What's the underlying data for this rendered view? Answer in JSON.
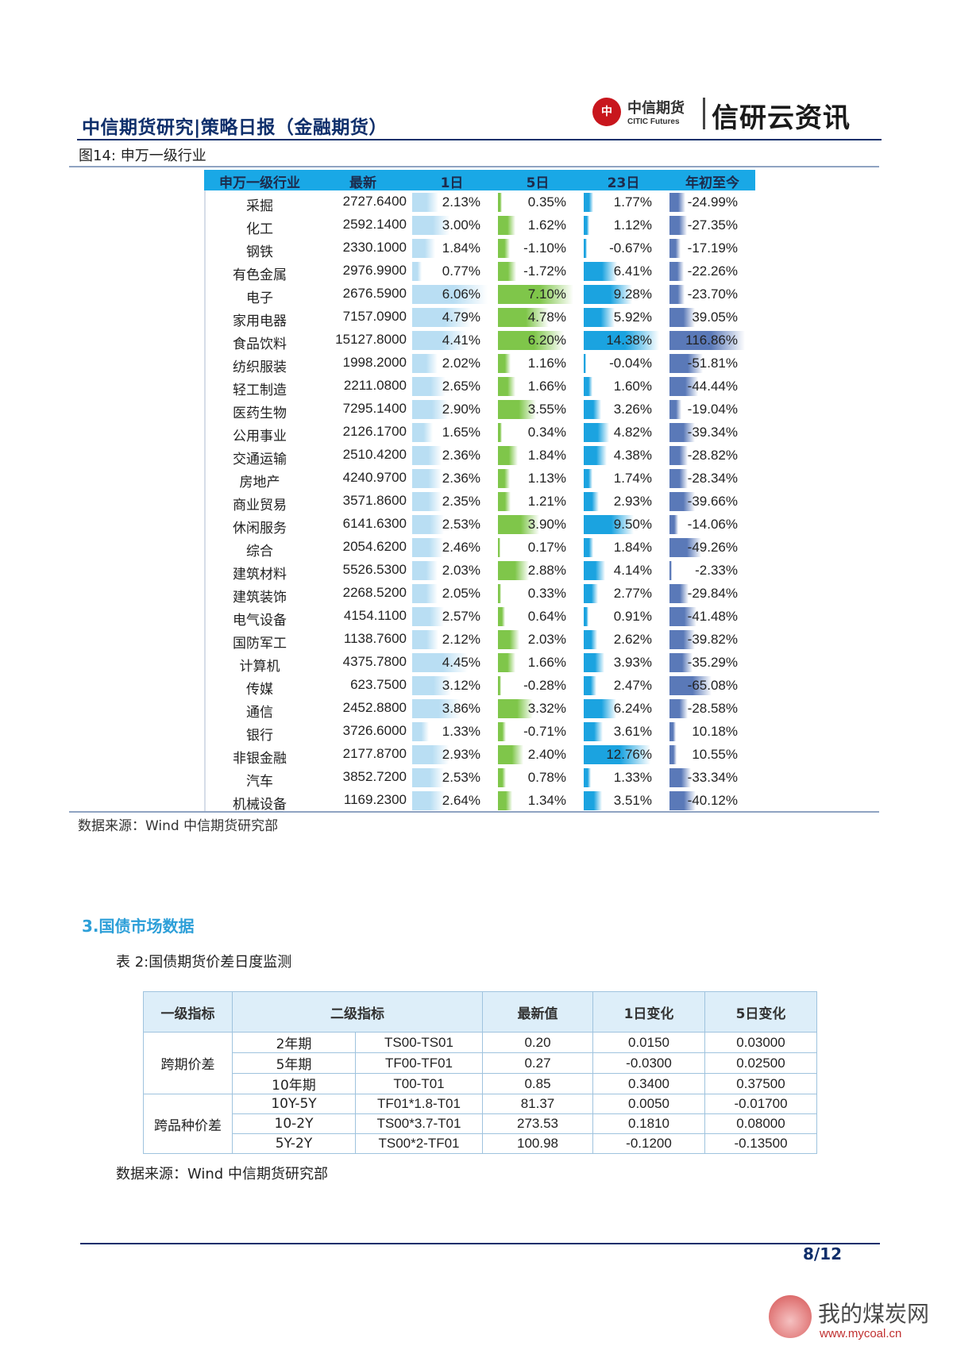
{
  "header": {
    "title": "中信期货研究|策略日报（金融期货）",
    "logo_cn": "中信期货",
    "logo_en": "CITIC Futures",
    "brand": "信研云资讯"
  },
  "figure14": {
    "caption": "图14: 申万一级行业",
    "source": "数据来源：Wind    中信期货研究部",
    "headers": [
      "申万一级行业",
      "最新",
      "1日",
      "5日",
      "23日",
      "年初至今"
    ],
    "bar_colors": {
      "d1": "#b9def3",
      "d5": "#7fc64a",
      "d23": "#1ba3e0",
      "ytd": "#5a79b8"
    },
    "rows": [
      {
        "name": "采掘",
        "latest": "2727.6400",
        "d1": "2.13%",
        "d5": "0.35%",
        "d23": "1.77%",
        "ytd": "-24.99%"
      },
      {
        "name": "化工",
        "latest": "2592.1400",
        "d1": "3.00%",
        "d5": "1.62%",
        "d23": "1.12%",
        "ytd": "-27.35%"
      },
      {
        "name": "钢铁",
        "latest": "2330.1000",
        "d1": "1.84%",
        "d5": "-1.10%",
        "d23": "-0.67%",
        "ytd": "-17.19%"
      },
      {
        "name": "有色金属",
        "latest": "2976.9900",
        "d1": "0.77%",
        "d5": "-1.72%",
        "d23": "6.41%",
        "ytd": "-22.26%"
      },
      {
        "name": "电子",
        "latest": "2676.5900",
        "d1": "6.06%",
        "d5": "7.10%",
        "d23": "9.28%",
        "ytd": "-23.70%"
      },
      {
        "name": "家用电器",
        "latest": "7157.0900",
        "d1": "4.79%",
        "d5": "4.78%",
        "d23": "5.92%",
        "ytd": "39.05%"
      },
      {
        "name": "食品饮料",
        "latest": "15127.8000",
        "d1": "4.41%",
        "d5": "6.20%",
        "d23": "14.38%",
        "ytd": "116.86%"
      },
      {
        "name": "纺织服装",
        "latest": "1998.2000",
        "d1": "2.02%",
        "d5": "1.16%",
        "d23": "-0.04%",
        "ytd": "-51.81%"
      },
      {
        "name": "轻工制造",
        "latest": "2211.0800",
        "d1": "2.65%",
        "d5": "1.66%",
        "d23": "1.60%",
        "ytd": "-44.44%"
      },
      {
        "name": "医药生物",
        "latest": "7295.1400",
        "d1": "2.90%",
        "d5": "3.55%",
        "d23": "3.26%",
        "ytd": "-19.04%"
      },
      {
        "name": "公用事业",
        "latest": "2126.1700",
        "d1": "1.65%",
        "d5": "0.34%",
        "d23": "4.82%",
        "ytd": "-39.34%"
      },
      {
        "name": "交通运输",
        "latest": "2510.4200",
        "d1": "2.36%",
        "d5": "1.84%",
        "d23": "4.38%",
        "ytd": "-28.82%"
      },
      {
        "name": "房地产",
        "latest": "4240.9700",
        "d1": "2.36%",
        "d5": "1.13%",
        "d23": "1.74%",
        "ytd": "-28.34%"
      },
      {
        "name": "商业贸易",
        "latest": "3571.8600",
        "d1": "2.35%",
        "d5": "1.21%",
        "d23": "2.93%",
        "ytd": "-39.66%"
      },
      {
        "name": "休闲服务",
        "latest": "6141.6300",
        "d1": "2.53%",
        "d5": "3.90%",
        "d23": "9.50%",
        "ytd": "-14.06%"
      },
      {
        "name": "综合",
        "latest": "2054.6200",
        "d1": "2.46%",
        "d5": "0.17%",
        "d23": "1.84%",
        "ytd": "-49.26%"
      },
      {
        "name": "建筑材料",
        "latest": "5526.5300",
        "d1": "2.03%",
        "d5": "2.88%",
        "d23": "4.14%",
        "ytd": "-2.33%"
      },
      {
        "name": "建筑装饰",
        "latest": "2268.5200",
        "d1": "2.05%",
        "d5": "0.33%",
        "d23": "2.77%",
        "ytd": "-29.84%"
      },
      {
        "name": "电气设备",
        "latest": "4154.1100",
        "d1": "2.57%",
        "d5": "0.64%",
        "d23": "0.91%",
        "ytd": "-41.48%"
      },
      {
        "name": "国防军工",
        "latest": "1138.7600",
        "d1": "2.12%",
        "d5": "2.03%",
        "d23": "2.62%",
        "ytd": "-39.82%"
      },
      {
        "name": "计算机",
        "latest": "4375.7800",
        "d1": "4.45%",
        "d5": "1.66%",
        "d23": "3.93%",
        "ytd": "-35.29%"
      },
      {
        "name": "传媒",
        "latest": "623.7500",
        "d1": "3.12%",
        "d5": "-0.28%",
        "d23": "2.47%",
        "ytd": "-65.08%"
      },
      {
        "name": "通信",
        "latest": "2452.8800",
        "d1": "3.86%",
        "d5": "3.32%",
        "d23": "6.24%",
        "ytd": "-28.58%"
      },
      {
        "name": "银行",
        "latest": "3726.6000",
        "d1": "1.33%",
        "d5": "-0.71%",
        "d23": "3.61%",
        "ytd": "10.18%"
      },
      {
        "name": "非银金融",
        "latest": "2177.8700",
        "d1": "2.93%",
        "d5": "2.40%",
        "d23": "12.76%",
        "ytd": "10.55%"
      },
      {
        "name": "汽车",
        "latest": "3852.7200",
        "d1": "2.53%",
        "d5": "0.78%",
        "d23": "1.33%",
        "ytd": "-33.34%"
      },
      {
        "name": "机械设备",
        "latest": "1169.2300",
        "d1": "2.64%",
        "d5": "1.34%",
        "d23": "3.51%",
        "ytd": "-40.12%"
      }
    ]
  },
  "section3": {
    "title": "3.国债市场数据",
    "table_caption": "表 2:国债期货价差日度监测",
    "headers": [
      "一级指标",
      "二级指标",
      "最新值",
      "1日变化",
      "5日变化"
    ],
    "groups": [
      {
        "label": "跨期价差",
        "rows": [
          {
            "term": "2年期",
            "code": "TS00-TS01",
            "latest": "0.20",
            "d1": "0.0150",
            "d5": "0.03000"
          },
          {
            "term": "5年期",
            "code": "TF00-TF01",
            "latest": "0.27",
            "d1": "-0.0300",
            "d5": "0.02500"
          },
          {
            "term": "10年期",
            "code": "T00-T01",
            "latest": "0.85",
            "d1": "0.3400",
            "d5": "0.37500"
          }
        ]
      },
      {
        "label": "跨品种价差",
        "rows": [
          {
            "term": "10Y-5Y",
            "code": "TF01*1.8-T01",
            "latest": "81.37",
            "d1": "0.0050",
            "d5": "-0.01700"
          },
          {
            "term": "10-2Y",
            "code": "TS00*3.7-T01",
            "latest": "273.53",
            "d1": "0.1810",
            "d5": "0.08000"
          },
          {
            "term": "5Y-2Y",
            "code": "TS00*2-TF01",
            "latest": "100.98",
            "d1": "-0.1200",
            "d5": "-0.13500"
          }
        ]
      }
    ],
    "source": "数据来源：Wind  中信期货研究部"
  },
  "footer": {
    "page": "8/12"
  },
  "watermark": {
    "cn": "我的煤炭网",
    "url": "www.mycoal.cn"
  }
}
